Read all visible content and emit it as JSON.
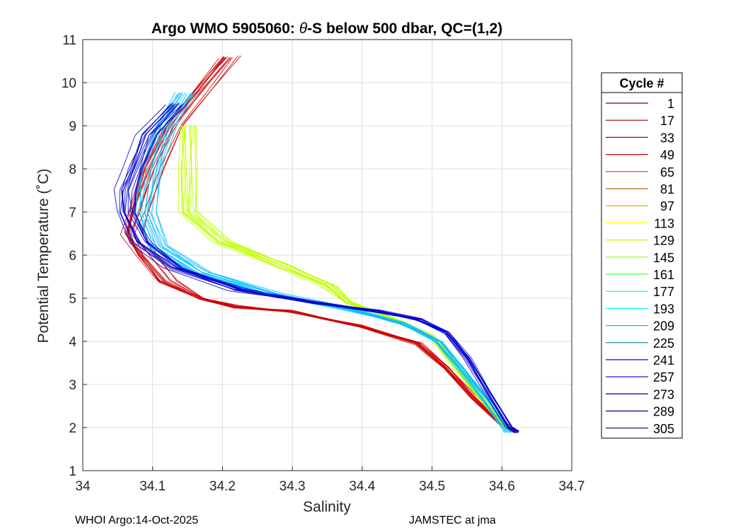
{
  "chart_data": {
    "type": "line",
    "title_prefix": "Argo WMO 5905060: ",
    "title_theta": "θ",
    "title_suffix": "-S below 500 dbar,  QC=(1,2)",
    "xlabel": "Salinity",
    "ylabel": "Potential Temperature (˚C)",
    "xlim": [
      34.0,
      34.7
    ],
    "ylim": [
      1,
      11
    ],
    "xticks": [
      "34",
      "34.1",
      "34.2",
      "34.3",
      "34.4",
      "34.5",
      "34.6",
      "34.7"
    ],
    "yticks": [
      "1",
      "2",
      "3",
      "4",
      "5",
      "6",
      "7",
      "8",
      "9",
      "10",
      "11"
    ],
    "grid": true,
    "legend_title": "Cycle #",
    "legend_placement": "right",
    "colormap": "jet",
    "legend_entries": [
      {
        "label": "1",
        "color": "#7f0000"
      },
      {
        "label": "17",
        "color": "#990000"
      },
      {
        "label": "33",
        "color": "#b30000"
      },
      {
        "label": "49",
        "color": "#cc0000"
      },
      {
        "label": "65",
        "color": "#d93a1a"
      },
      {
        "label": "81",
        "color": "#b36b00"
      },
      {
        "label": "97",
        "color": "#d9a400"
      },
      {
        "label": "113",
        "color": "#ffff00"
      },
      {
        "label": "129",
        "color": "#bfff00"
      },
      {
        "label": "145",
        "color": "#80ff00"
      },
      {
        "label": "161",
        "color": "#40ff40"
      },
      {
        "label": "177",
        "color": "#00ffa0"
      },
      {
        "label": "193",
        "color": "#00ffff"
      },
      {
        "label": "209",
        "color": "#00bfff"
      },
      {
        "label": "225",
        "color": "#008080"
      },
      {
        "label": "241",
        "color": "#0000ff"
      },
      {
        "label": "257",
        "color": "#0000d9"
      },
      {
        "label": "273",
        "color": "#0000b3"
      },
      {
        "label": "289",
        "color": "#00008c"
      },
      {
        "label": "305",
        "color": "#000066"
      }
    ],
    "profile_groups": [
      {
        "name": "early cycles (red)",
        "color": "#cc0000",
        "points": [
          [
            34.21,
            10.6
          ],
          [
            34.17,
            9.8
          ],
          [
            34.13,
            9.0
          ],
          [
            34.1,
            8.0
          ],
          [
            34.08,
            7.0
          ],
          [
            34.07,
            6.5
          ],
          [
            34.09,
            6.0
          ],
          [
            34.12,
            5.4
          ],
          [
            34.17,
            5.0
          ],
          [
            34.22,
            4.8
          ],
          [
            34.3,
            4.7
          ],
          [
            34.4,
            4.35
          ],
          [
            34.48,
            3.95
          ],
          [
            34.52,
            3.4
          ],
          [
            34.56,
            2.7
          ],
          [
            34.6,
            2.1
          ],
          [
            34.62,
            1.9
          ]
        ]
      },
      {
        "name": "mid cycles (yellow-green)",
        "color": "#bfff00",
        "points": [
          [
            34.15,
            9.0
          ],
          [
            34.15,
            8.0
          ],
          [
            34.15,
            7.0
          ],
          [
            34.2,
            6.3
          ],
          [
            34.28,
            5.8
          ],
          [
            34.35,
            5.3
          ],
          [
            34.38,
            4.9
          ],
          [
            34.45,
            4.5
          ],
          [
            34.5,
            4.1
          ],
          [
            34.53,
            3.5
          ],
          [
            34.57,
            2.7
          ],
          [
            34.61,
            1.95
          ]
        ]
      },
      {
        "name": "later cycles (cyan)",
        "color": "#00bfff",
        "points": [
          [
            34.15,
            9.75
          ],
          [
            34.12,
            9.0
          ],
          [
            34.1,
            8.0
          ],
          [
            34.09,
            7.0
          ],
          [
            34.11,
            6.2
          ],
          [
            34.17,
            5.6
          ],
          [
            34.27,
            5.1
          ],
          [
            34.38,
            4.75
          ],
          [
            34.46,
            4.4
          ],
          [
            34.51,
            4.0
          ],
          [
            34.54,
            3.4
          ],
          [
            34.58,
            2.6
          ],
          [
            34.61,
            1.9
          ]
        ]
      },
      {
        "name": "latest cycles (blue)",
        "color": "#0000cc",
        "points": [
          [
            34.13,
            9.5
          ],
          [
            34.09,
            8.8
          ],
          [
            34.07,
            8.0
          ],
          [
            34.06,
            7.5
          ],
          [
            34.06,
            7.0
          ],
          [
            34.08,
            6.3
          ],
          [
            34.13,
            5.7
          ],
          [
            34.22,
            5.2
          ],
          [
            34.33,
            4.9
          ],
          [
            34.42,
            4.7
          ],
          [
            34.48,
            4.5
          ],
          [
            34.52,
            4.2
          ],
          [
            34.55,
            3.6
          ],
          [
            34.58,
            2.8
          ],
          [
            34.61,
            2.0
          ],
          [
            34.62,
            1.9
          ]
        ]
      }
    ]
  },
  "footer": {
    "left": "WHOI Argo:14-Oct-2025",
    "right": "JAMSTEC at jma"
  }
}
